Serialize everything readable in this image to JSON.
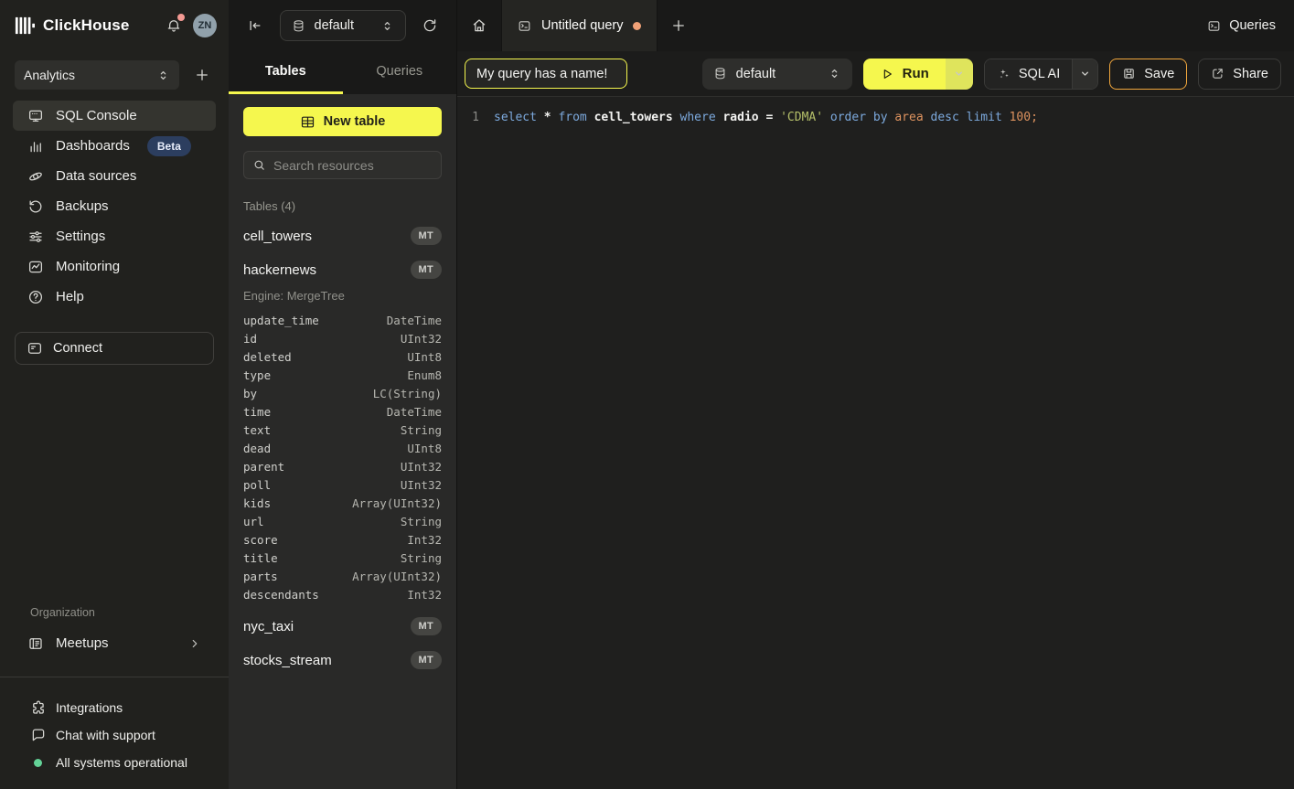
{
  "colors": {
    "accent_yellow": "#f5f74e",
    "run_secondary": "#dfe45c",
    "save_orange": "#f1a73d",
    "beta_bg": "#2c3e5f",
    "status_green": "#63d297",
    "unsaved_dot": "#f0a177",
    "notif_dot": "#f49a93",
    "avatar_bg": "#91a1ab",
    "kw": "#7ca9dd",
    "str": "#b5c069",
    "num": "#de935f"
  },
  "topbar": {
    "brand": "ClickHouse",
    "avatar_initials": "ZN"
  },
  "sidebar": {
    "workspace": "Analytics",
    "nav": [
      {
        "label": "SQL Console",
        "icon": "console",
        "active": true
      },
      {
        "label": "Dashboards",
        "icon": "bar-chart",
        "badge": "Beta"
      },
      {
        "label": "Data sources",
        "icon": "planet"
      },
      {
        "label": "Backups",
        "icon": "restore"
      },
      {
        "label": "Settings",
        "icon": "sliders"
      },
      {
        "label": "Monitoring",
        "icon": "wave-chart"
      },
      {
        "label": "Help",
        "icon": "question-circle"
      }
    ],
    "connect": "Connect",
    "org_label": "Organization",
    "org_items": [
      {
        "label": "Meetups",
        "icon": "building",
        "chevron": true
      }
    ],
    "footer": [
      {
        "label": "Integrations",
        "icon": "puzzle"
      },
      {
        "label": "Chat with support",
        "icon": "chat-bubble"
      },
      {
        "label": "All systems operational",
        "icon": "status-dot"
      }
    ]
  },
  "explorer": {
    "database": "default",
    "tabs": [
      {
        "label": "Tables",
        "active": true
      },
      {
        "label": "Queries",
        "active": false
      }
    ],
    "new_table": "New table",
    "search_placeholder": "Search resources",
    "section": "Tables (4)",
    "tables": [
      {
        "name": "cell_towers",
        "badge": "MT"
      },
      {
        "name": "hackernews",
        "badge": "MT",
        "engine": "Engine: MergeTree",
        "columns": [
          [
            "update_time",
            "DateTime"
          ],
          [
            "id",
            "UInt32"
          ],
          [
            "deleted",
            "UInt8"
          ],
          [
            "type",
            "Enum8"
          ],
          [
            "by",
            "LC(String)"
          ],
          [
            "time",
            "DateTime"
          ],
          [
            "text",
            "String"
          ],
          [
            "dead",
            "UInt8"
          ],
          [
            "parent",
            "UInt32"
          ],
          [
            "poll",
            "UInt32"
          ],
          [
            "kids",
            "Array(UInt32)"
          ],
          [
            "url",
            "String"
          ],
          [
            "score",
            "Int32"
          ],
          [
            "title",
            "String"
          ],
          [
            "parts",
            "Array(UInt32)"
          ],
          [
            "descendants",
            "Int32"
          ]
        ]
      },
      {
        "name": "nyc_taxi",
        "badge": "MT"
      },
      {
        "name": "stocks_stream",
        "badge": "MT"
      }
    ]
  },
  "main": {
    "tab_title": "Untitled query",
    "queries_label": "Queries",
    "toolbar": {
      "query_name": "My query has a name!",
      "database": "default",
      "run": "Run",
      "sql_ai": "SQL AI",
      "save": "Save",
      "share": "Share"
    },
    "editor": {
      "line_number": "1",
      "tokens": [
        {
          "text": "select ",
          "type": "keyword"
        },
        {
          "text": "* ",
          "type": "op"
        },
        {
          "text": "from ",
          "type": "keyword"
        },
        {
          "text": "cell_towers ",
          "type": "ident"
        },
        {
          "text": "where ",
          "type": "keyword"
        },
        {
          "text": "radio ",
          "type": "ident"
        },
        {
          "text": "= ",
          "type": "op"
        },
        {
          "text": "'CDMA' ",
          "type": "string"
        },
        {
          "text": "order ",
          "type": "keyword"
        },
        {
          "text": "by ",
          "type": "keyword"
        },
        {
          "text": "area ",
          "type": "number"
        },
        {
          "text": "desc ",
          "type": "keyword"
        },
        {
          "text": "limit ",
          "type": "keyword"
        },
        {
          "text": "100;",
          "type": "number"
        }
      ]
    }
  }
}
